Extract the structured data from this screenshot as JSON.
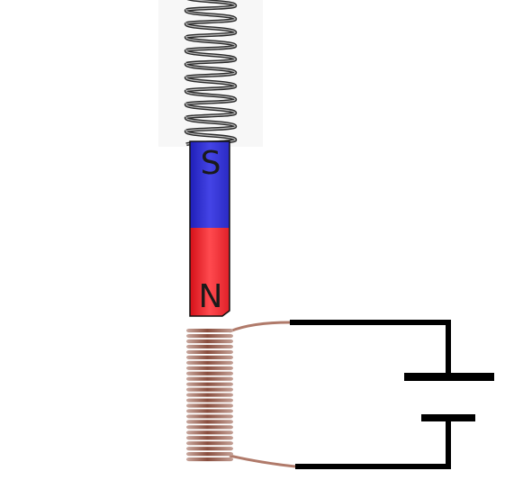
{
  "magnet": {
    "top_pole_label": "S",
    "bottom_pole_label": "N",
    "top_color": "#3a3ad8",
    "bottom_color": "#e8242b"
  },
  "spring": {
    "color": "#2a2a2a",
    "backdrop_color": "#f7f7f7"
  },
  "coil": {
    "wire_color": "#b07a6a"
  },
  "circuit": {
    "wire_color": "#000000",
    "component": "battery"
  }
}
